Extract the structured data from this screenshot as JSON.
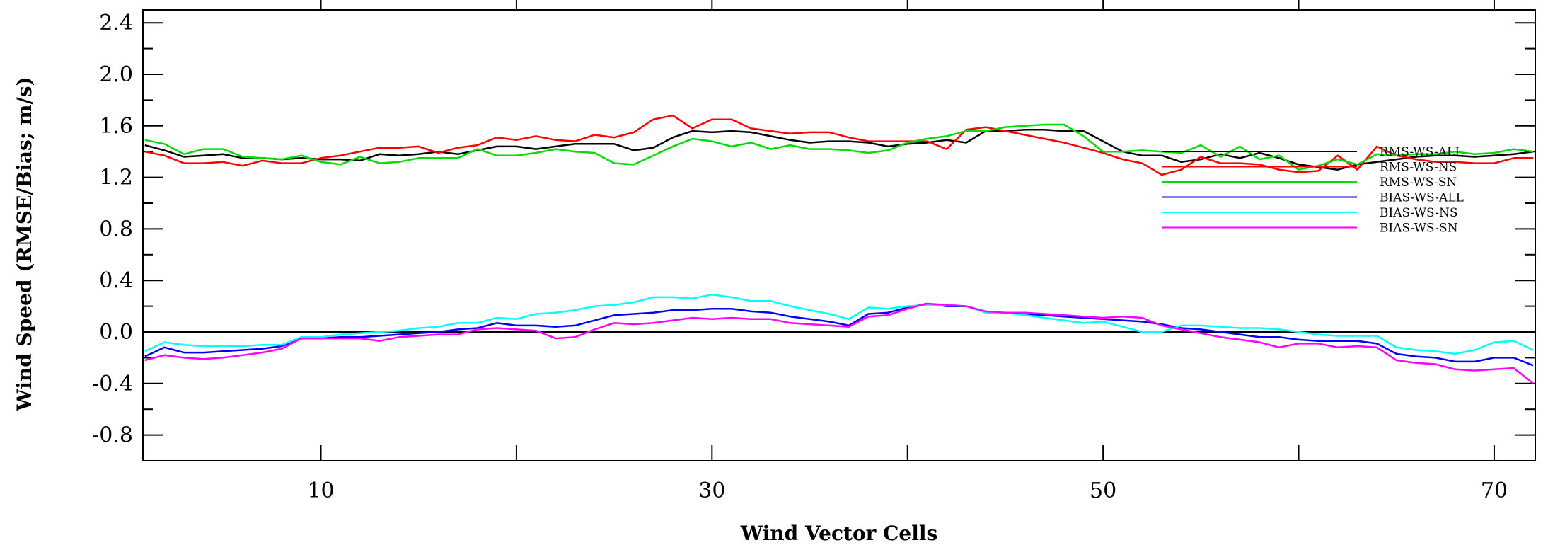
{
  "chart_data": {
    "type": "line",
    "xlabel": "Wind Vector Cells",
    "ylabel": "Wind Speed (RMSE/Bias; m/s)",
    "xlim": [
      1,
      72
    ],
    "ylim": [
      -1.0,
      2.5
    ],
    "x_ticks": [
      10,
      30,
      50,
      70
    ],
    "y_ticks": [
      "2.4",
      "2.0",
      "1.6",
      "1.2",
      "0.8",
      "0.4",
      "0.0",
      "-0.4",
      "-0.8"
    ],
    "y_tick_values": [
      2.4,
      2.0,
      1.6,
      1.2,
      0.8,
      0.4,
      0.0,
      -0.4,
      -0.8
    ],
    "zero_line": true,
    "legend_position": "right-middle",
    "x": [
      1,
      2,
      3,
      4,
      5,
      6,
      7,
      8,
      9,
      10,
      11,
      12,
      13,
      14,
      15,
      16,
      17,
      18,
      19,
      20,
      21,
      22,
      23,
      24,
      25,
      26,
      27,
      28,
      29,
      30,
      31,
      32,
      33,
      34,
      35,
      36,
      37,
      38,
      39,
      40,
      41,
      42,
      43,
      44,
      45,
      46,
      47,
      48,
      49,
      50,
      51,
      52,
      53,
      54,
      55,
      56,
      57,
      58,
      59,
      60,
      61,
      62,
      63,
      64,
      65,
      66,
      67,
      68,
      69,
      70,
      71,
      72
    ],
    "series": [
      {
        "name": "RMS-WS-ALL",
        "color": "#000000",
        "values": [
          1.45,
          1.41,
          1.36,
          1.37,
          1.38,
          1.35,
          1.35,
          1.34,
          1.35,
          1.34,
          1.34,
          1.33,
          1.38,
          1.37,
          1.38,
          1.4,
          1.38,
          1.41,
          1.44,
          1.44,
          1.42,
          1.44,
          1.46,
          1.46,
          1.46,
          1.41,
          1.43,
          1.51,
          1.56,
          1.55,
          1.56,
          1.55,
          1.52,
          1.49,
          1.47,
          1.48,
          1.48,
          1.47,
          1.44,
          1.46,
          1.47,
          1.49,
          1.47,
          1.56,
          1.56,
          1.57,
          1.57,
          1.56,
          1.56,
          1.48,
          1.4,
          1.37,
          1.37,
          1.32,
          1.34,
          1.38,
          1.35,
          1.39,
          1.35,
          1.3,
          1.28,
          1.26,
          1.3,
          1.32,
          1.34,
          1.36,
          1.37,
          1.37,
          1.36,
          1.37,
          1.38,
          1.4
        ]
      },
      {
        "name": "RMS-WS-NS",
        "color": "#ff0000",
        "values": [
          1.4,
          1.37,
          1.31,
          1.31,
          1.32,
          1.29,
          1.33,
          1.31,
          1.31,
          1.35,
          1.37,
          1.4,
          1.43,
          1.43,
          1.44,
          1.39,
          1.43,
          1.45,
          1.51,
          1.49,
          1.52,
          1.49,
          1.48,
          1.53,
          1.51,
          1.55,
          1.65,
          1.68,
          1.58,
          1.65,
          1.65,
          1.58,
          1.56,
          1.54,
          1.55,
          1.55,
          1.51,
          1.48,
          1.48,
          1.48,
          1.48,
          1.42,
          1.57,
          1.59,
          1.56,
          1.53,
          1.5,
          1.47,
          1.43,
          1.39,
          1.34,
          1.31,
          1.22,
          1.26,
          1.36,
          1.31,
          1.31,
          1.3,
          1.26,
          1.24,
          1.25,
          1.37,
          1.26,
          1.44,
          1.37,
          1.34,
          1.32,
          1.32,
          1.31,
          1.31,
          1.35,
          1.35
        ]
      },
      {
        "name": "RMS-WS-SN",
        "color": "#00dd00",
        "values": [
          1.49,
          1.46,
          1.38,
          1.42,
          1.42,
          1.36,
          1.35,
          1.34,
          1.37,
          1.32,
          1.3,
          1.36,
          1.31,
          1.32,
          1.35,
          1.35,
          1.35,
          1.42,
          1.37,
          1.37,
          1.39,
          1.42,
          1.4,
          1.39,
          1.31,
          1.3,
          1.37,
          1.44,
          1.5,
          1.48,
          1.44,
          1.47,
          1.42,
          1.45,
          1.42,
          1.42,
          1.41,
          1.39,
          1.41,
          1.47,
          1.5,
          1.52,
          1.56,
          1.56,
          1.59,
          1.6,
          1.61,
          1.61,
          1.52,
          1.4,
          1.4,
          1.41,
          1.4,
          1.39,
          1.45,
          1.36,
          1.44,
          1.34,
          1.37,
          1.26,
          1.29,
          1.34,
          1.3,
          1.38,
          1.37,
          1.38,
          1.38,
          1.4,
          1.38,
          1.39,
          1.42,
          1.4
        ]
      },
      {
        "name": "BIAS-WS-ALL",
        "color": "#0000ff",
        "values": [
          -0.19,
          -0.12,
          -0.16,
          -0.16,
          -0.15,
          -0.14,
          -0.13,
          -0.11,
          -0.05,
          -0.05,
          -0.04,
          -0.04,
          -0.03,
          -0.02,
          -0.01,
          0.0,
          0.02,
          0.03,
          0.07,
          0.05,
          0.05,
          0.04,
          0.05,
          0.09,
          0.13,
          0.14,
          0.15,
          0.17,
          0.17,
          0.18,
          0.18,
          0.16,
          0.15,
          0.12,
          0.1,
          0.08,
          0.05,
          0.14,
          0.15,
          0.19,
          0.22,
          0.2,
          0.2,
          0.15,
          0.15,
          0.14,
          0.13,
          0.12,
          0.11,
          0.1,
          0.09,
          0.08,
          0.06,
          0.03,
          0.02,
          0.0,
          -0.02,
          -0.04,
          -0.04,
          -0.06,
          -0.07,
          -0.07,
          -0.07,
          -0.09,
          -0.17,
          -0.19,
          -0.2,
          -0.23,
          -0.23,
          -0.2,
          -0.2,
          -0.26
        ]
      },
      {
        "name": "BIAS-WS-NS",
        "color": "#00ffff",
        "values": [
          -0.15,
          -0.08,
          -0.1,
          -0.11,
          -0.11,
          -0.11,
          -0.1,
          -0.1,
          -0.04,
          -0.04,
          -0.02,
          -0.01,
          0.0,
          0.01,
          0.03,
          0.04,
          0.07,
          0.07,
          0.11,
          0.1,
          0.14,
          0.15,
          0.17,
          0.2,
          0.21,
          0.23,
          0.27,
          0.27,
          0.26,
          0.29,
          0.27,
          0.24,
          0.24,
          0.2,
          0.17,
          0.14,
          0.1,
          0.19,
          0.18,
          0.2,
          0.21,
          0.21,
          0.2,
          0.15,
          0.15,
          0.13,
          0.11,
          0.09,
          0.07,
          0.08,
          0.04,
          0.0,
          0.0,
          0.05,
          0.05,
          0.04,
          0.03,
          0.03,
          0.02,
          0.0,
          -0.02,
          -0.03,
          -0.03,
          -0.03,
          -0.12,
          -0.14,
          -0.15,
          -0.17,
          -0.14,
          -0.08,
          -0.07,
          -0.14
        ]
      },
      {
        "name": "BIAS-WS-SN",
        "color": "#ff00ff",
        "values": [
          -0.22,
          -0.18,
          -0.2,
          -0.21,
          -0.2,
          -0.18,
          -0.16,
          -0.13,
          -0.05,
          -0.05,
          -0.05,
          -0.05,
          -0.07,
          -0.04,
          -0.03,
          -0.02,
          -0.02,
          0.02,
          0.03,
          0.02,
          0.01,
          -0.05,
          -0.04,
          0.02,
          0.07,
          0.06,
          0.07,
          0.09,
          0.11,
          0.1,
          0.11,
          0.1,
          0.1,
          0.07,
          0.06,
          0.05,
          0.04,
          0.12,
          0.13,
          0.18,
          0.22,
          0.21,
          0.2,
          0.16,
          0.15,
          0.15,
          0.14,
          0.13,
          0.12,
          0.11,
          0.12,
          0.11,
          0.05,
          0.02,
          -0.01,
          -0.04,
          -0.06,
          -0.08,
          -0.12,
          -0.09,
          -0.09,
          -0.12,
          -0.11,
          -0.12,
          -0.22,
          -0.24,
          -0.25,
          -0.29,
          -0.3,
          -0.29,
          -0.28,
          -0.4
        ]
      }
    ]
  }
}
